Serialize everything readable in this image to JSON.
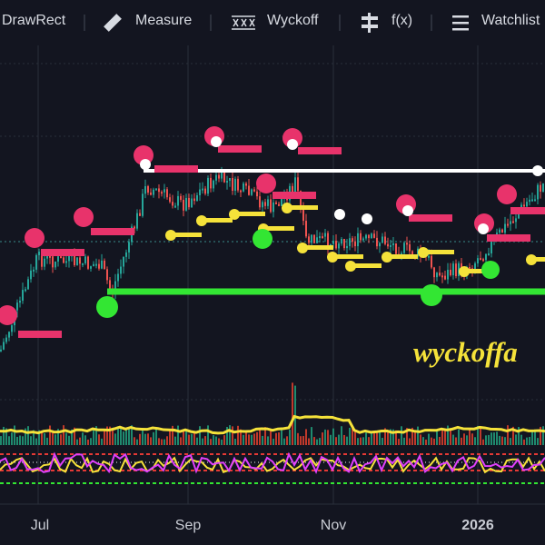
{
  "toolbar": {
    "items": [
      "DrawRect",
      "Measure",
      "Wyckoff",
      "f(x)",
      "Watchlist"
    ]
  },
  "watermark": "wyckoffa",
  "time_axis": {
    "labels": [
      "Jul",
      "Sep",
      "Nov",
      "2026"
    ]
  }
}
